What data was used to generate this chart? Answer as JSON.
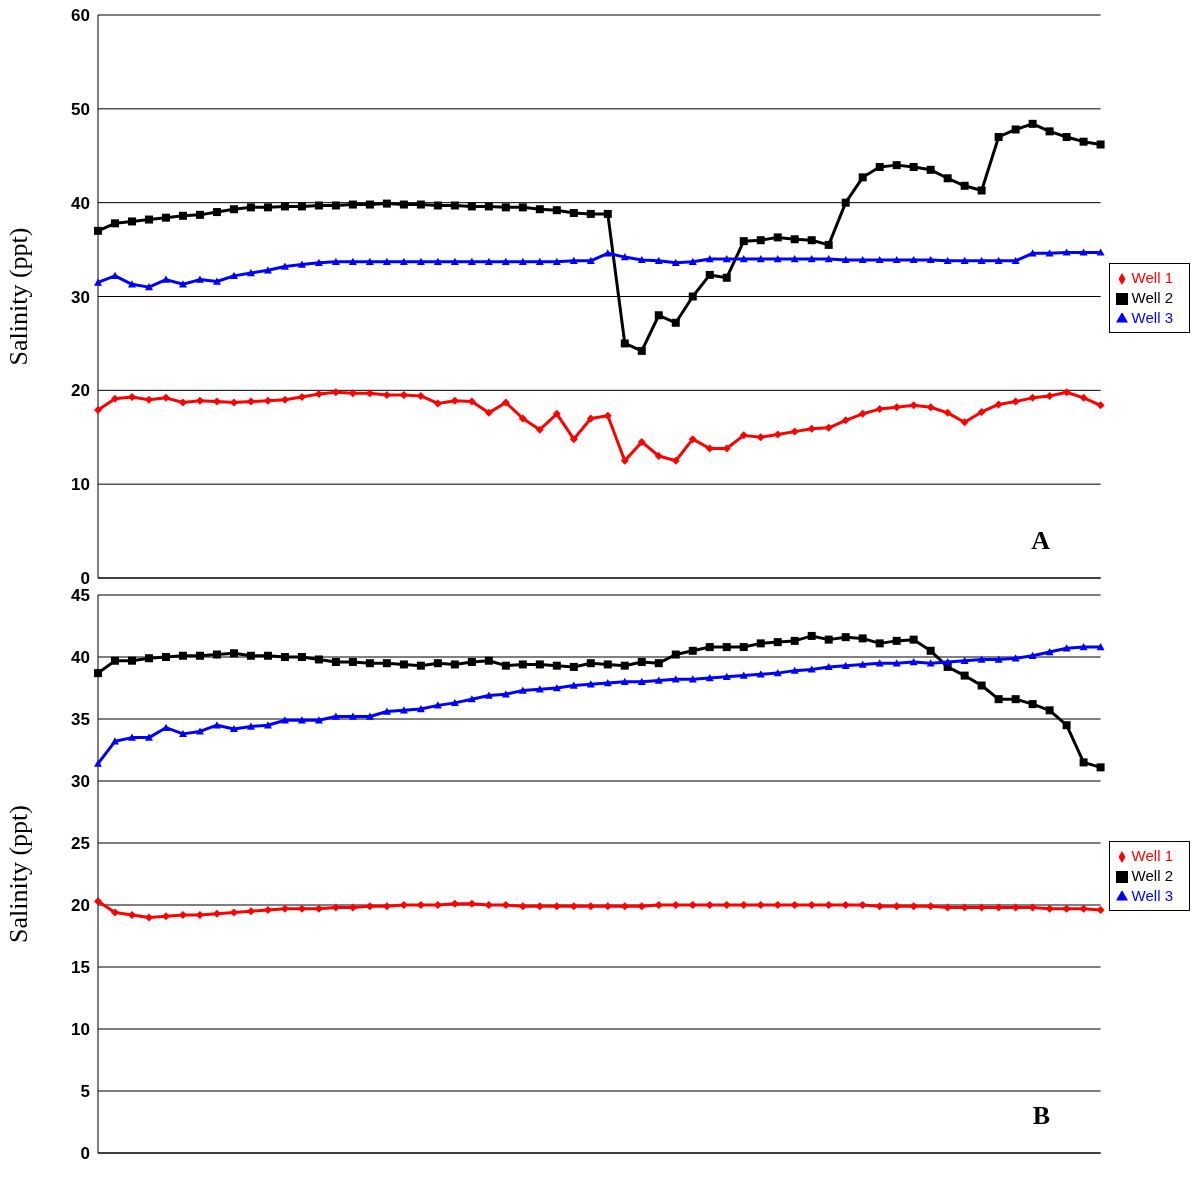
{
  "chart_data": [
    {
      "type": "line",
      "ylabel": "Salinity (ppt)",
      "annotations": [
        "A"
      ],
      "categories": [
        null,
        null,
        null,
        null,
        null,
        null,
        null,
        null,
        null,
        null,
        null,
        null,
        null,
        null,
        null,
        null,
        null,
        null,
        null,
        null,
        null,
        null,
        null,
        null,
        null,
        null,
        null,
        null,
        null,
        null,
        null,
        null,
        null,
        null,
        null,
        null,
        null,
        null,
        null,
        null,
        null,
        null,
        null,
        null,
        null,
        null,
        null,
        null,
        null,
        null,
        null,
        null,
        null,
        null,
        null,
        null,
        null,
        null,
        null,
        null
      ],
      "ylim": [
        0,
        60
      ],
      "yticks": [
        0,
        10,
        20,
        30,
        40,
        50,
        60
      ],
      "grid": "y",
      "legend": "right",
      "line_style": "solid",
      "series": [
        {
          "name": "Well 1",
          "color": "#ff0000",
          "marker": "diamond",
          "values": [
            17.9,
            19.1,
            19.3,
            19,
            19.2,
            18.7,
            18.9,
            18.8,
            18.7,
            18.8,
            18.9,
            19,
            19.3,
            19.6,
            19.8,
            19.7,
            19.7,
            19.5,
            19.5,
            19.4,
            18.6,
            18.9,
            18.8,
            17.6,
            18.7,
            17,
            15.8,
            17.5,
            14.8,
            17,
            17.3,
            12.5,
            14.5,
            13,
            12.5,
            14.8,
            13.8,
            13.8,
            15.2,
            15,
            15.3,
            15.6,
            15.9,
            16,
            16.8,
            17.5,
            18,
            18.2,
            18.4,
            18.2,
            17.6,
            16.6,
            17.7,
            18.5,
            18.8,
            19.2,
            19.4,
            19.8,
            19.2,
            18.4
          ]
        },
        {
          "name": "Well 2",
          "color": "#000000",
          "marker": "square",
          "values": [
            37,
            37.8,
            38,
            38.2,
            38.4,
            38.6,
            38.7,
            39,
            39.3,
            39.5,
            39.5,
            39.6,
            39.6,
            39.7,
            39.7,
            39.8,
            39.8,
            39.9,
            39.8,
            39.8,
            39.7,
            39.7,
            39.6,
            39.6,
            39.5,
            39.5,
            39.3,
            39.2,
            38.9,
            38.8,
            38.8,
            25,
            24.2,
            28,
            27.2,
            30,
            32.3,
            32,
            35.9,
            36,
            36.3,
            36.1,
            36,
            35.5,
            40,
            42.7,
            43.8,
            44,
            43.8,
            43.5,
            42.6,
            41.8,
            41.3,
            47,
            47.8,
            48.4,
            47.6,
            47,
            46.5,
            46.2
          ]
        },
        {
          "name": "Well 3",
          "color": "#0000ff",
          "marker": "triangle",
          "values": [
            31.5,
            32.2,
            31.3,
            31,
            31.8,
            31.3,
            31.8,
            31.6,
            32.2,
            32.5,
            32.8,
            33.2,
            33.4,
            33.6,
            33.7,
            33.7,
            33.7,
            33.7,
            33.7,
            33.7,
            33.7,
            33.7,
            33.7,
            33.7,
            33.7,
            33.7,
            33.7,
            33.7,
            33.8,
            33.8,
            34.6,
            34.2,
            33.9,
            33.8,
            33.6,
            33.7,
            34,
            34,
            34,
            34,
            34,
            34,
            34,
            34,
            33.9,
            33.9,
            33.9,
            33.9,
            33.9,
            33.9,
            33.8,
            33.8,
            33.8,
            33.8,
            33.8,
            34.6,
            34.6,
            34.7,
            34.7,
            34.7
          ]
        }
      ]
    },
    {
      "type": "line",
      "ylabel": "Salinity (ppt)",
      "annotations": [
        "B"
      ],
      "categories": [
        null,
        null,
        null,
        null,
        null,
        null,
        null,
        null,
        null,
        null,
        null,
        null,
        null,
        null,
        null,
        null,
        null,
        null,
        null,
        null,
        null,
        null,
        null,
        null,
        null,
        null,
        null,
        null,
        null,
        null,
        null,
        null,
        null,
        null,
        null,
        null,
        null,
        null,
        null,
        null,
        null,
        null,
        null,
        null,
        null,
        null,
        null,
        null,
        null,
        null,
        null,
        null,
        null,
        null,
        null,
        null,
        null,
        null,
        null,
        null
      ],
      "ylim": [
        0,
        45
      ],
      "yticks": [
        0,
        5,
        10,
        15,
        20,
        25,
        30,
        35,
        40,
        45
      ],
      "grid": "y",
      "legend": "right",
      "line_style": "solid",
      "series": [
        {
          "name": "Well 1",
          "color": "#ff0000",
          "marker": "diamond",
          "values": [
            20.3,
            19.4,
            19.2,
            19,
            19.1,
            19.2,
            19.2,
            19.3,
            19.4,
            19.5,
            19.6,
            19.7,
            19.7,
            19.7,
            19.8,
            19.8,
            19.9,
            19.9,
            20,
            20,
            20,
            20.1,
            20.1,
            20,
            20,
            19.9,
            19.9,
            19.9,
            19.9,
            19.9,
            19.9,
            19.9,
            19.9,
            20,
            20,
            20,
            20,
            20,
            20,
            20,
            20,
            20,
            20,
            20,
            20,
            20,
            19.9,
            19.9,
            19.9,
            19.9,
            19.8,
            19.8,
            19.8,
            19.8,
            19.8,
            19.8,
            19.7,
            19.7,
            19.7,
            19.6
          ]
        },
        {
          "name": "Well 2",
          "color": "#000000",
          "marker": "square",
          "values": [
            38.7,
            39.7,
            39.7,
            39.9,
            40,
            40.1,
            40.1,
            40.2,
            40.3,
            40.1,
            40.1,
            40,
            40,
            39.8,
            39.6,
            39.6,
            39.5,
            39.5,
            39.4,
            39.3,
            39.5,
            39.4,
            39.6,
            39.7,
            39.3,
            39.4,
            39.4,
            39.3,
            39.2,
            39.5,
            39.4,
            39.3,
            39.6,
            39.5,
            40.2,
            40.5,
            40.8,
            40.8,
            40.8,
            41.1,
            41.2,
            41.3,
            41.7,
            41.4,
            41.6,
            41.5,
            41.1,
            41.3,
            41.4,
            40.5,
            39.2,
            38.5,
            37.7,
            36.6,
            36.6,
            36.2,
            35.7,
            34.5,
            31.5,
            31.1
          ]
        },
        {
          "name": "Well 3",
          "color": "#0000ff",
          "marker": "triangle",
          "values": [
            31.4,
            33.2,
            33.5,
            33.5,
            34.3,
            33.8,
            34,
            34.5,
            34.2,
            34.4,
            34.5,
            34.9,
            34.9,
            34.9,
            35.2,
            35.2,
            35.2,
            35.6,
            35.7,
            35.8,
            36.1,
            36.3,
            36.6,
            36.9,
            37,
            37.3,
            37.4,
            37.5,
            37.7,
            37.8,
            37.9,
            38,
            38,
            38.1,
            38.2,
            38.2,
            38.3,
            38.4,
            38.5,
            38.6,
            38.7,
            38.9,
            39,
            39.2,
            39.3,
            39.4,
            39.5,
            39.5,
            39.6,
            39.5,
            39.6,
            39.7,
            39.8,
            39.8,
            39.9,
            40.1,
            40.4,
            40.7,
            40.8,
            40.8
          ]
        }
      ]
    }
  ]
}
